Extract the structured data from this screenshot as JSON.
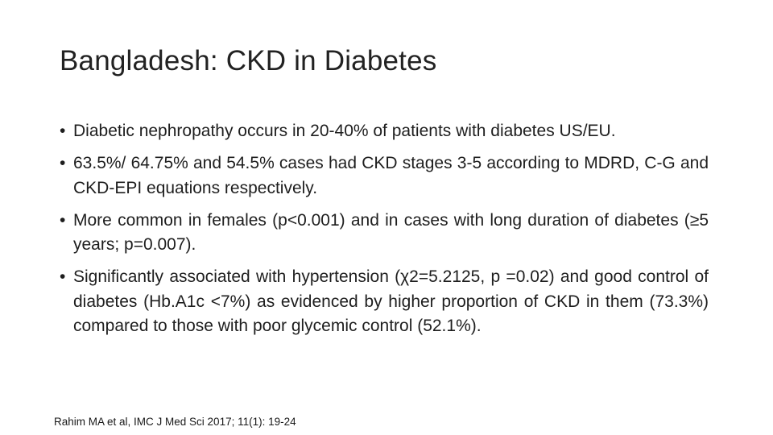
{
  "slide": {
    "title": "Bangladesh: CKD in Diabetes",
    "bullet_marker": "•",
    "bullets": [
      "Diabetic nephropathy occurs in 20-40% of patients with diabetes US/EU.",
      "63.5%/ 64.75% and 54.5% cases had CKD stages 3-5 according to MDRD, C-G and CKD-EPI equations respectively.",
      "More common in females (p<0.001) and in cases with long duration of diabetes (≥5 years; p=0.007).",
      "Significantly associated with hypertension (χ2=5.2125, p =0.02) and good control of diabetes (Hb.A1c <7%) as evidenced by higher proportion of CKD in them (73.3%) compared to those with poor glycemic control (52.1%)."
    ],
    "citation": "Rahim MA et al, IMC J Med Sci 2017; 11(1): 19-24"
  }
}
